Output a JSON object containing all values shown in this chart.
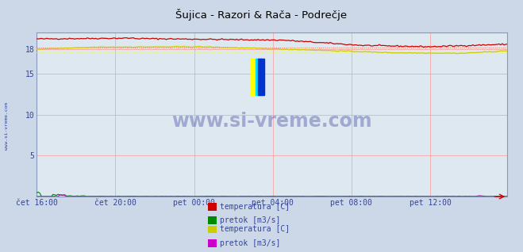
{
  "title": "Šujica - Razori & Rača - Podrečje",
  "fig_bg": "#ccd8e8",
  "plot_bg": "#dde8f0",
  "grid_color": "#ff9999",
  "ytick_color": "#ffdddd",
  "xlim": [
    0,
    287
  ],
  "ylim": [
    0,
    20
  ],
  "yticks": [
    5,
    10,
    15,
    18
  ],
  "xtick_positions": [
    0,
    48,
    96,
    144,
    192,
    240
  ],
  "xtick_labels": [
    "čet 16:00",
    "čet 20:00",
    "pet 00:00",
    "pet 04:00",
    "pet 08:00",
    "pet 12:00"
  ],
  "watermark": "www.si-vreme.com",
  "watermark_color": "#1a1a8c",
  "watermark_alpha": 0.3,
  "left_label": "www.si-vreme.com",
  "temp1_color": "#cc0000",
  "avg1_color": "#ff6666",
  "flow1_color": "#008800",
  "temp2_color": "#cccc00",
  "avg2_color": "#eeee66",
  "flow2_color": "#cc00cc",
  "legend": [
    {
      "label": "temperatura [C]",
      "color": "#cc0000"
    },
    {
      "label": "pretok [m3/s]",
      "color": "#008800"
    },
    {
      "label": "temperatura [C]",
      "color": "#cccc00"
    },
    {
      "label": "pretok [m3/s]",
      "color": "#cc00cc"
    }
  ]
}
